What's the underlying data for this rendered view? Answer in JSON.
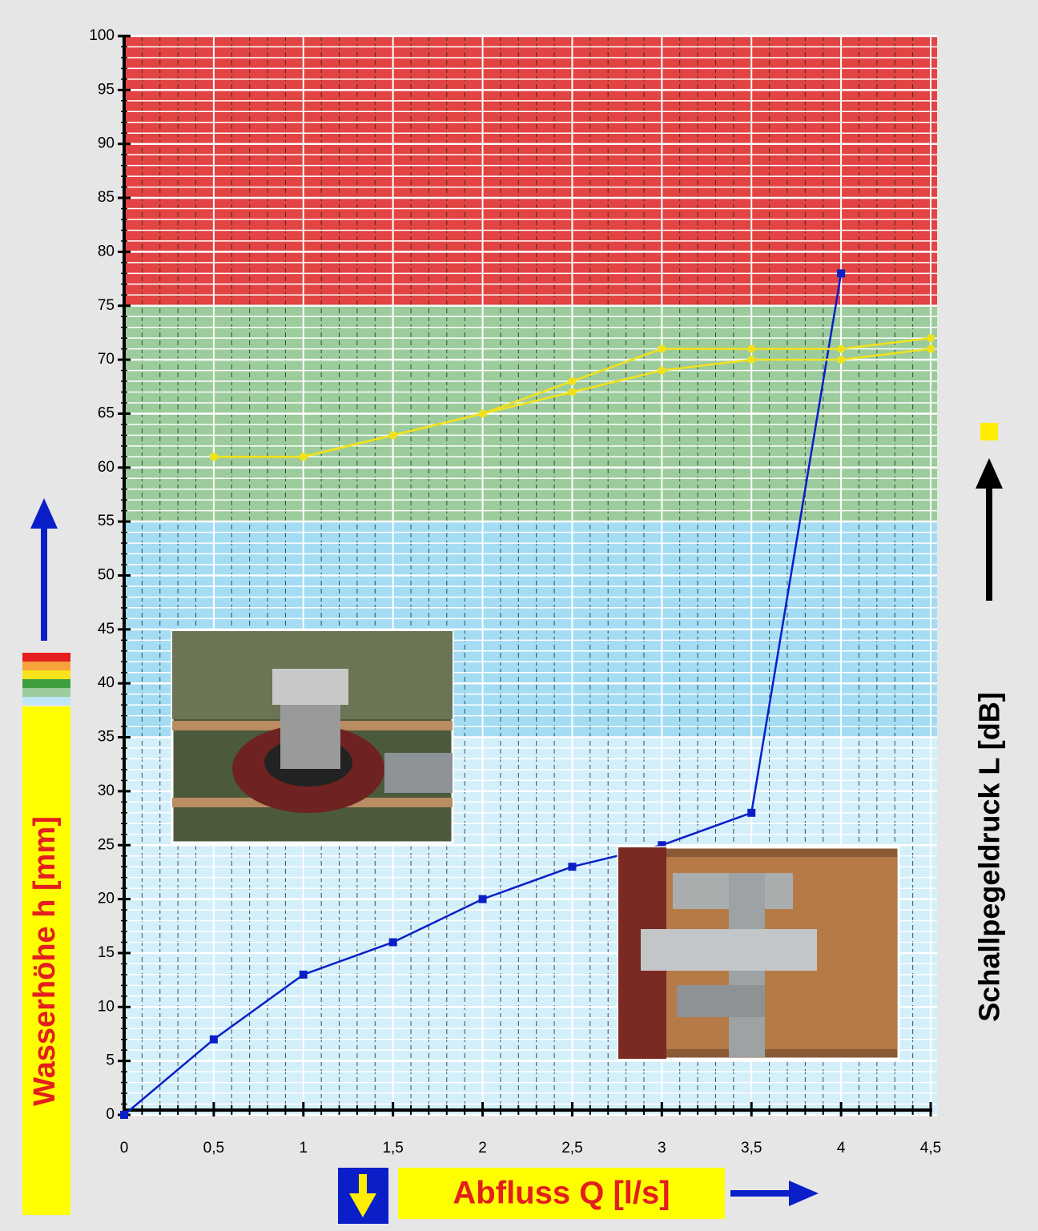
{
  "chart_data": {
    "type": "line",
    "y_label": "Wasserhöhe h [mm]",
    "y2_label": "Schallpegeldruck L [dB]",
    "x_label": "Abfluss Q [l/s]",
    "xlim": [
      0,
      4.5
    ],
    "ylim": [
      0,
      100
    ],
    "xticks": [
      0,
      {
        "value": 0.5,
        "label": "0,5"
      },
      1,
      {
        "value": 1.5,
        "label": "1,5"
      },
      2,
      {
        "value": 2.5,
        "label": "2,5"
      },
      3,
      {
        "value": 3.5,
        "label": "3,5"
      },
      4,
      {
        "value": 4.5,
        "label": "4,5"
      }
    ],
    "yticks": [
      0,
      5,
      10,
      15,
      20,
      25,
      30,
      35,
      40,
      45,
      50,
      55,
      60,
      65,
      70,
      75,
      80,
      85,
      90,
      95,
      100
    ],
    "grid": true,
    "minor_grid": {
      "x": 0.1,
      "y": 1
    },
    "bands": [
      {
        "from": 0,
        "to": 35,
        "color": "#d3effa"
      },
      {
        "from": 35,
        "to": 55,
        "color": "#a3dcf3"
      },
      {
        "from": 55,
        "to": 75,
        "color": "#9ccc9c"
      },
      {
        "from": 75,
        "to": 100,
        "color": "#e24343"
      }
    ],
    "series": [
      {
        "color": "#0a1fc8",
        "marker": "square",
        "x": [
          0,
          0.5,
          1,
          1.5,
          2,
          2.5,
          3,
          3.5,
          4
        ],
        "values": [
          0,
          7,
          13,
          16,
          20,
          23,
          25,
          28,
          78
        ]
      },
      {
        "color": "#f2e21a",
        "marker": "circle",
        "axis": "y2",
        "x": [
          0.5,
          1,
          1.5,
          2,
          2.5,
          3,
          3.5,
          4,
          4.5
        ],
        "values": [
          61,
          61,
          63,
          65,
          68,
          71,
          71,
          71,
          72
        ]
      },
      {
        "color": "#f2e21a",
        "marker": "circle",
        "axis": "y2",
        "x": [
          0.5,
          1,
          1.5,
          2,
          2.5,
          3,
          3.5,
          4,
          4.5
        ],
        "values": [
          61,
          61,
          63,
          65,
          67,
          69,
          70,
          70,
          71
        ]
      }
    ]
  }
}
